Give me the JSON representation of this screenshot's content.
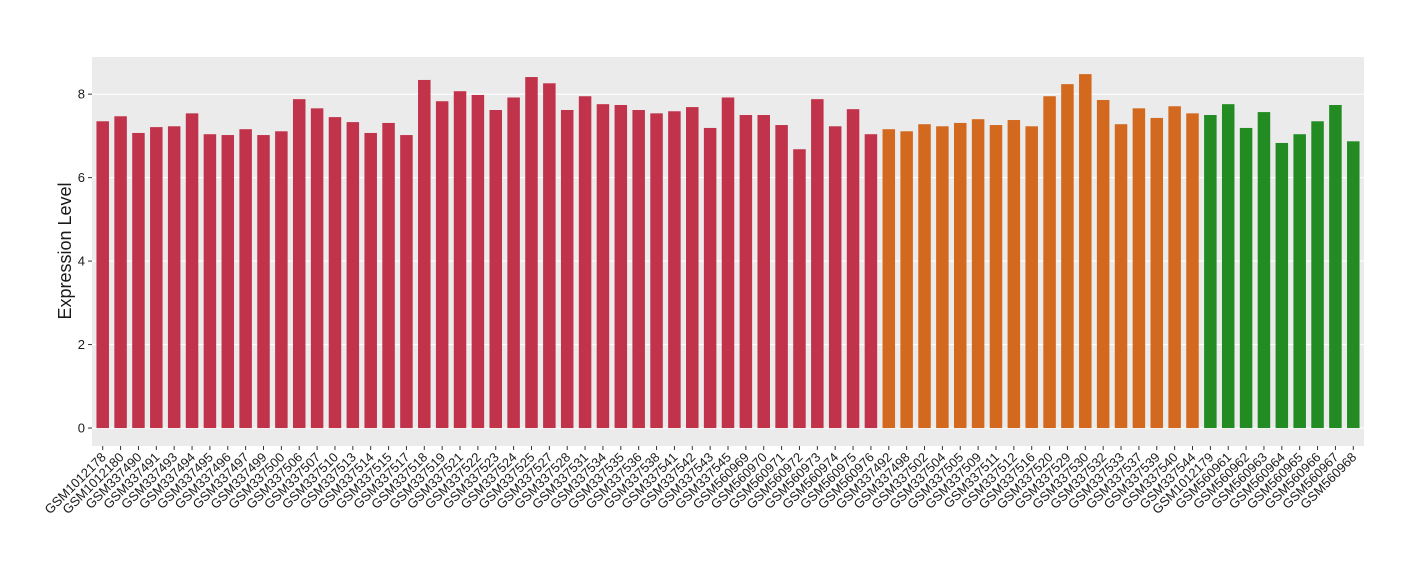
{
  "chart_data": {
    "type": "bar",
    "y_label": "Expression Level",
    "categories": [
      "GSM1012178",
      "GSM1012180",
      "GSM337490",
      "GSM337491",
      "GSM337493",
      "GSM337494",
      "GSM337495",
      "GSM337496",
      "GSM337497",
      "GSM337499",
      "GSM337500",
      "GSM337506",
      "GSM337507",
      "GSM337510",
      "GSM337513",
      "GSM337514",
      "GSM337515",
      "GSM337517",
      "GSM337518",
      "GSM337519",
      "GSM337521",
      "GSM337522",
      "GSM337523",
      "GSM337524",
      "GSM337525",
      "GSM337527",
      "GSM337528",
      "GSM337531",
      "GSM337534",
      "GSM337535",
      "GSM337536",
      "GSM337538",
      "GSM337541",
      "GSM337542",
      "GSM337543",
      "GSM337545",
      "GSM560969",
      "GSM560970",
      "GSM560971",
      "GSM560972",
      "GSM560973",
      "GSM560974",
      "GSM560975",
      "GSM560976",
      "GSM337492",
      "GSM337498",
      "GSM337502",
      "GSM337504",
      "GSM337505",
      "GSM337509",
      "GSM337511",
      "GSM337512",
      "GSM337516",
      "GSM337520",
      "GSM337529",
      "GSM337530",
      "GSM337532",
      "GSM337533",
      "GSM337537",
      "GSM337539",
      "GSM337540",
      "GSM337544",
      "GSM1012179",
      "GSM560961",
      "GSM560962",
      "GSM560963",
      "GSM560964",
      "GSM560965",
      "GSM560966",
      "GSM560967",
      "GSM560968"
    ],
    "values": [
      7.35,
      7.47,
      7.07,
      7.21,
      7.23,
      7.54,
      7.04,
      7.02,
      7.16,
      7.02,
      7.11,
      7.88,
      7.66,
      7.45,
      7.33,
      7.07,
      7.31,
      7.02,
      8.34,
      7.83,
      8.07,
      7.98,
      7.62,
      7.92,
      8.41,
      8.26,
      7.62,
      7.95,
      7.76,
      7.74,
      7.62,
      7.54,
      7.59,
      7.69,
      7.19,
      7.92,
      7.5,
      7.5,
      7.26,
      6.68,
      7.88,
      7.23,
      7.64,
      7.04,
      7.16,
      7.11,
      7.28,
      7.23,
      7.31,
      7.4,
      7.26,
      7.38,
      7.23,
      7.95,
      8.24,
      8.48,
      7.86,
      7.28,
      7.66,
      7.43,
      7.71,
      7.54,
      7.5,
      7.76,
      7.19,
      7.57,
      6.83,
      7.04,
      7.35,
      7.74,
      6.87
    ],
    "colors": [
      "#c1334a",
      "#c1334a",
      "#c1334a",
      "#c1334a",
      "#c1334a",
      "#c1334a",
      "#c1334a",
      "#c1334a",
      "#c1334a",
      "#c1334a",
      "#c1334a",
      "#c1334a",
      "#c1334a",
      "#c1334a",
      "#c1334a",
      "#c1334a",
      "#c1334a",
      "#c1334a",
      "#c1334a",
      "#c1334a",
      "#c1334a",
      "#c1334a",
      "#c1334a",
      "#c1334a",
      "#c1334a",
      "#c1334a",
      "#c1334a",
      "#c1334a",
      "#c1334a",
      "#c1334a",
      "#c1334a",
      "#c1334a",
      "#c1334a",
      "#c1334a",
      "#c1334a",
      "#c1334a",
      "#c1334a",
      "#c1334a",
      "#c1334a",
      "#c1334a",
      "#c1334a",
      "#c1334a",
      "#c1334a",
      "#c1334a",
      "#d2691e",
      "#d2691e",
      "#d2691e",
      "#d2691e",
      "#d2691e",
      "#d2691e",
      "#d2691e",
      "#d2691e",
      "#d2691e",
      "#d2691e",
      "#d2691e",
      "#d2691e",
      "#d2691e",
      "#d2691e",
      "#d2691e",
      "#d2691e",
      "#d2691e",
      "#d2691e",
      "#228b22",
      "#228b22",
      "#228b22",
      "#228b22",
      "#228b22",
      "#228b22",
      "#228b22",
      "#228b22",
      "#228b22"
    ],
    "ylim": [
      -0.43,
      8.89
    ],
    "yticks": [
      0,
      2,
      4,
      6,
      8
    ],
    "grid": true
  }
}
